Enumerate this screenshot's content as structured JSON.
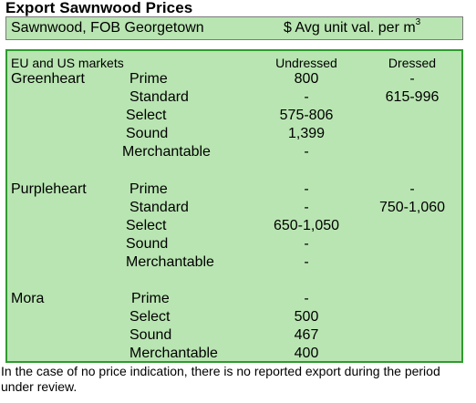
{
  "title": "Export Sawnwood Prices",
  "header": {
    "left": "Sawnwood, FOB Georgetown",
    "right": "$ Avg unit val. per m",
    "right_sup": "3"
  },
  "table": {
    "section_label": "EU and US markets",
    "col_undressed": "Undressed",
    "col_dressed": "Dressed",
    "species": {
      "greenheart": "Greenheart",
      "purpleheart": "Purpleheart",
      "mora": "Mora"
    },
    "rows": [
      {
        "grade": "Prime",
        "undressed": "800",
        "dressed": "-"
      },
      {
        "grade": "Standard",
        "undressed": "-",
        "dressed": "615-996"
      },
      {
        "grade": "Select",
        "undressed": "575-806",
        "dressed": ""
      },
      {
        "grade": "Sound",
        "undressed": "1,399",
        "dressed": ""
      },
      {
        "grade": "Merchantable",
        "undressed": "-",
        "dressed": ""
      },
      {
        "grade": "Prime",
        "undressed": "-",
        "dressed": "-"
      },
      {
        "grade": "Standard",
        "undressed": "-",
        "dressed": "750-1,060"
      },
      {
        "grade": "Select",
        "undressed": "650-1,050",
        "dressed": ""
      },
      {
        "grade": "Sound",
        "undressed": "-",
        "dressed": ""
      },
      {
        "grade": "Merchantable",
        "undressed": "-",
        "dressed": ""
      },
      {
        "grade": "Prime",
        "undressed": "-",
        "dressed": ""
      },
      {
        "grade": "Select",
        "undressed": "500",
        "dressed": ""
      },
      {
        "grade": "Sound",
        "undressed": "467",
        "dressed": ""
      },
      {
        "grade": "Merchantable",
        "undressed": "400",
        "dressed": ""
      }
    ]
  },
  "footnote": "In the case of no price indication, there is no reported export during the period under review."
}
